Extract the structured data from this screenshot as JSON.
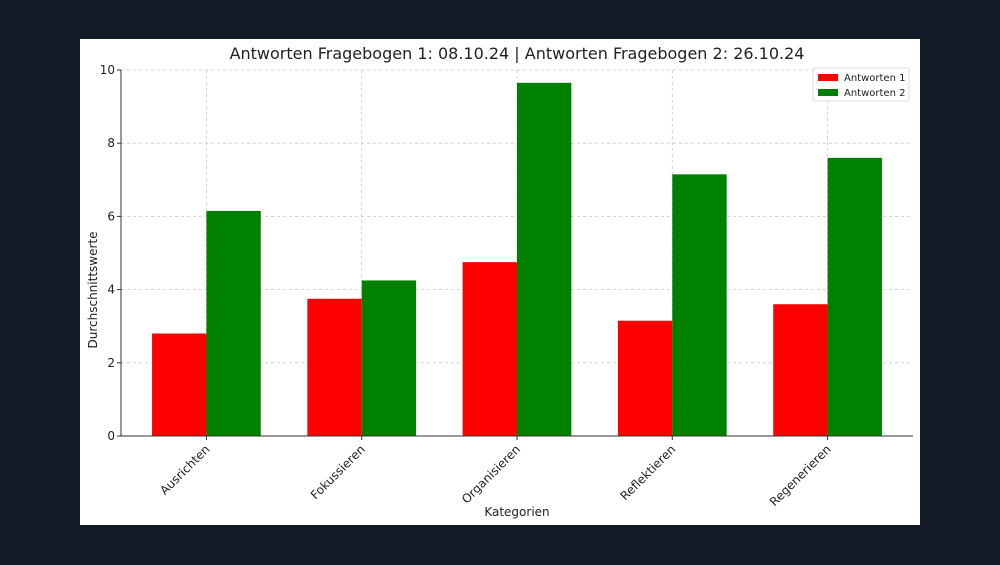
{
  "chart_data": {
    "type": "bar",
    "title": "Antworten Fragebogen 1: 08.10.24 | Antworten Fragebogen 2: 26.10.24",
    "xlabel": "Kategorien",
    "ylabel": "Durchschnittswerte",
    "categories": [
      "Ausrichten",
      "Fokussieren",
      "Organisieren",
      "Reflektieren",
      "Regenerieren"
    ],
    "series": [
      {
        "name": "Antworten 1",
        "color": "#ff0000",
        "values": [
          2.8,
          3.75,
          4.75,
          3.15,
          3.6
        ]
      },
      {
        "name": "Antworten 2",
        "color": "#008000",
        "values": [
          6.15,
          4.25,
          9.65,
          7.15,
          7.6
        ]
      }
    ],
    "ylim": [
      0,
      10
    ],
    "yticks": [
      0,
      2,
      4,
      6,
      8,
      10
    ],
    "grid": true,
    "legend_position": "top-right"
  }
}
